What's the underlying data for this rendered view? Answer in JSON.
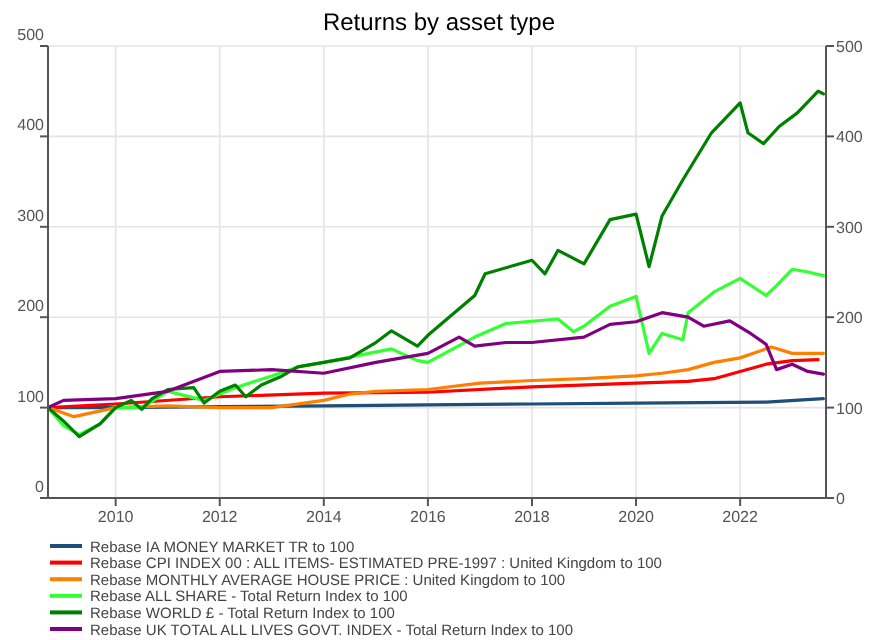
{
  "chart_data": {
    "type": "line",
    "title": "Returns by asset type",
    "xlim": [
      2008.7,
      2023.65
    ],
    "xticks": [
      2010,
      2012,
      2014,
      2016,
      2018,
      2020,
      2022
    ],
    "ylim": [
      0,
      500
    ],
    "yticks": [
      0,
      100,
      200,
      300,
      400,
      500
    ],
    "y2lim": [
      0,
      500
    ],
    "y2ticks": [
      0,
      100,
      200,
      300,
      400,
      500
    ],
    "grid": true,
    "legend": "bottom",
    "marker": "none",
    "line_style": "solid",
    "series": [
      {
        "name": "Rebase IA MONEY MARKET TR to 100",
        "color": "#1f4e79",
        "x": [
          2008.7,
          2010,
          2012,
          2014,
          2016,
          2018,
          2020,
          2022.5,
          2023.6
        ],
        "values": [
          100,
          100,
          101,
          102,
          103,
          104,
          105,
          106,
          110
        ]
      },
      {
        "name": "Rebase CPI INDEX 00 : ALL ITEMS- ESTIMATED PRE-1997 : United Kingdom to 100",
        "color": "#ff0000",
        "x": [
          2008.7,
          2010,
          2012,
          2014,
          2016,
          2018,
          2020,
          2021,
          2021.5,
          2022,
          2022.5,
          2023,
          2023.5
        ],
        "values": [
          100,
          104,
          112,
          116,
          117,
          123,
          127,
          129,
          132,
          140,
          148,
          152,
          153
        ]
      },
      {
        "name": "Rebase MONTHLY AVERAGE HOUSE PRICE : United Kingdom to 100",
        "color": "#ff7f00",
        "x": [
          2008.7,
          2009.2,
          2010,
          2011,
          2012,
          2013,
          2014,
          2014.5,
          2015,
          2016,
          2017,
          2018,
          2019,
          2020,
          2020.5,
          2021,
          2021.5,
          2022,
          2022.6,
          2023,
          2023.6
        ],
        "values": [
          100,
          90,
          100,
          102,
          100,
          100,
          108,
          115,
          118,
          120,
          127,
          130,
          132,
          135,
          138,
          142,
          150,
          155,
          167,
          160,
          160
        ]
      },
      {
        "name": "Rebase ALL SHARE - Total Return Index to 100",
        "color": "#33ff33",
        "x": [
          2008.7,
          2009,
          2009.3,
          2009.7,
          2010,
          2010.5,
          2011,
          2011.7,
          2012.3,
          2013,
          2013.5,
          2014,
          2015.3,
          2015.8,
          2016,
          2016.9,
          2017.5,
          2018.5,
          2018.8,
          2019,
          2019.5,
          2020,
          2020.25,
          2020.5,
          2020.9,
          2021,
          2021.5,
          2022,
          2022.5,
          2022.7,
          2023,
          2023.3,
          2023.6
        ],
        "values": [
          100,
          80,
          70,
          82,
          100,
          100,
          118,
          108,
          122,
          135,
          145,
          150,
          165,
          152,
          150,
          178,
          193,
          198,
          184,
          190,
          212,
          223,
          160,
          182,
          175,
          205,
          228,
          243,
          224,
          235,
          253,
          250,
          246
        ]
      },
      {
        "name": "Rebase WORLD £ - Total Return Index to 100",
        "color": "#008000",
        "x": [
          2008.7,
          2009,
          2009.3,
          2009.7,
          2010,
          2010.3,
          2010.5,
          2010.7,
          2011,
          2011.5,
          2011.7,
          2012,
          2012.3,
          2012.5,
          2012.8,
          2013.2,
          2013.5,
          2014,
          2014.5,
          2015,
          2015.3,
          2015.8,
          2016,
          2016.9,
          2017.1,
          2018,
          2018.25,
          2018.5,
          2019,
          2019.5,
          2020,
          2020.25,
          2020.5,
          2020.9,
          2021.45,
          2022,
          2022.15,
          2022.45,
          2022.75,
          2023.1,
          2023.5,
          2023.6
        ],
        "values": [
          100,
          85,
          68,
          82,
          100,
          108,
          98,
          110,
          120,
          122,
          105,
          118,
          125,
          112,
          125,
          135,
          145,
          150,
          155,
          172,
          185,
          168,
          180,
          224,
          248,
          263,
          248,
          274,
          259,
          308,
          314,
          256,
          312,
          352,
          404,
          437,
          404,
          392,
          411,
          426,
          450,
          447
        ]
      },
      {
        "name": "Rebase UK TOTAL ALL LIVES GOVT. INDEX - Total Return Index to 100",
        "color": "#800080",
        "x": [
          2008.7,
          2009,
          2010,
          2011,
          2012,
          2013,
          2014,
          2015,
          2016,
          2016.6,
          2016.9,
          2017.5,
          2018,
          2019,
          2019.5,
          2020,
          2020.5,
          2021,
          2021.3,
          2021.8,
          2022.2,
          2022.5,
          2022.7,
          2023,
          2023.3,
          2023.6
        ],
        "values": [
          100,
          108,
          110,
          118,
          140,
          142,
          138,
          150,
          160,
          178,
          168,
          172,
          172,
          178,
          192,
          195,
          205,
          200,
          190,
          196,
          182,
          170,
          142,
          148,
          140,
          137
        ]
      }
    ]
  }
}
